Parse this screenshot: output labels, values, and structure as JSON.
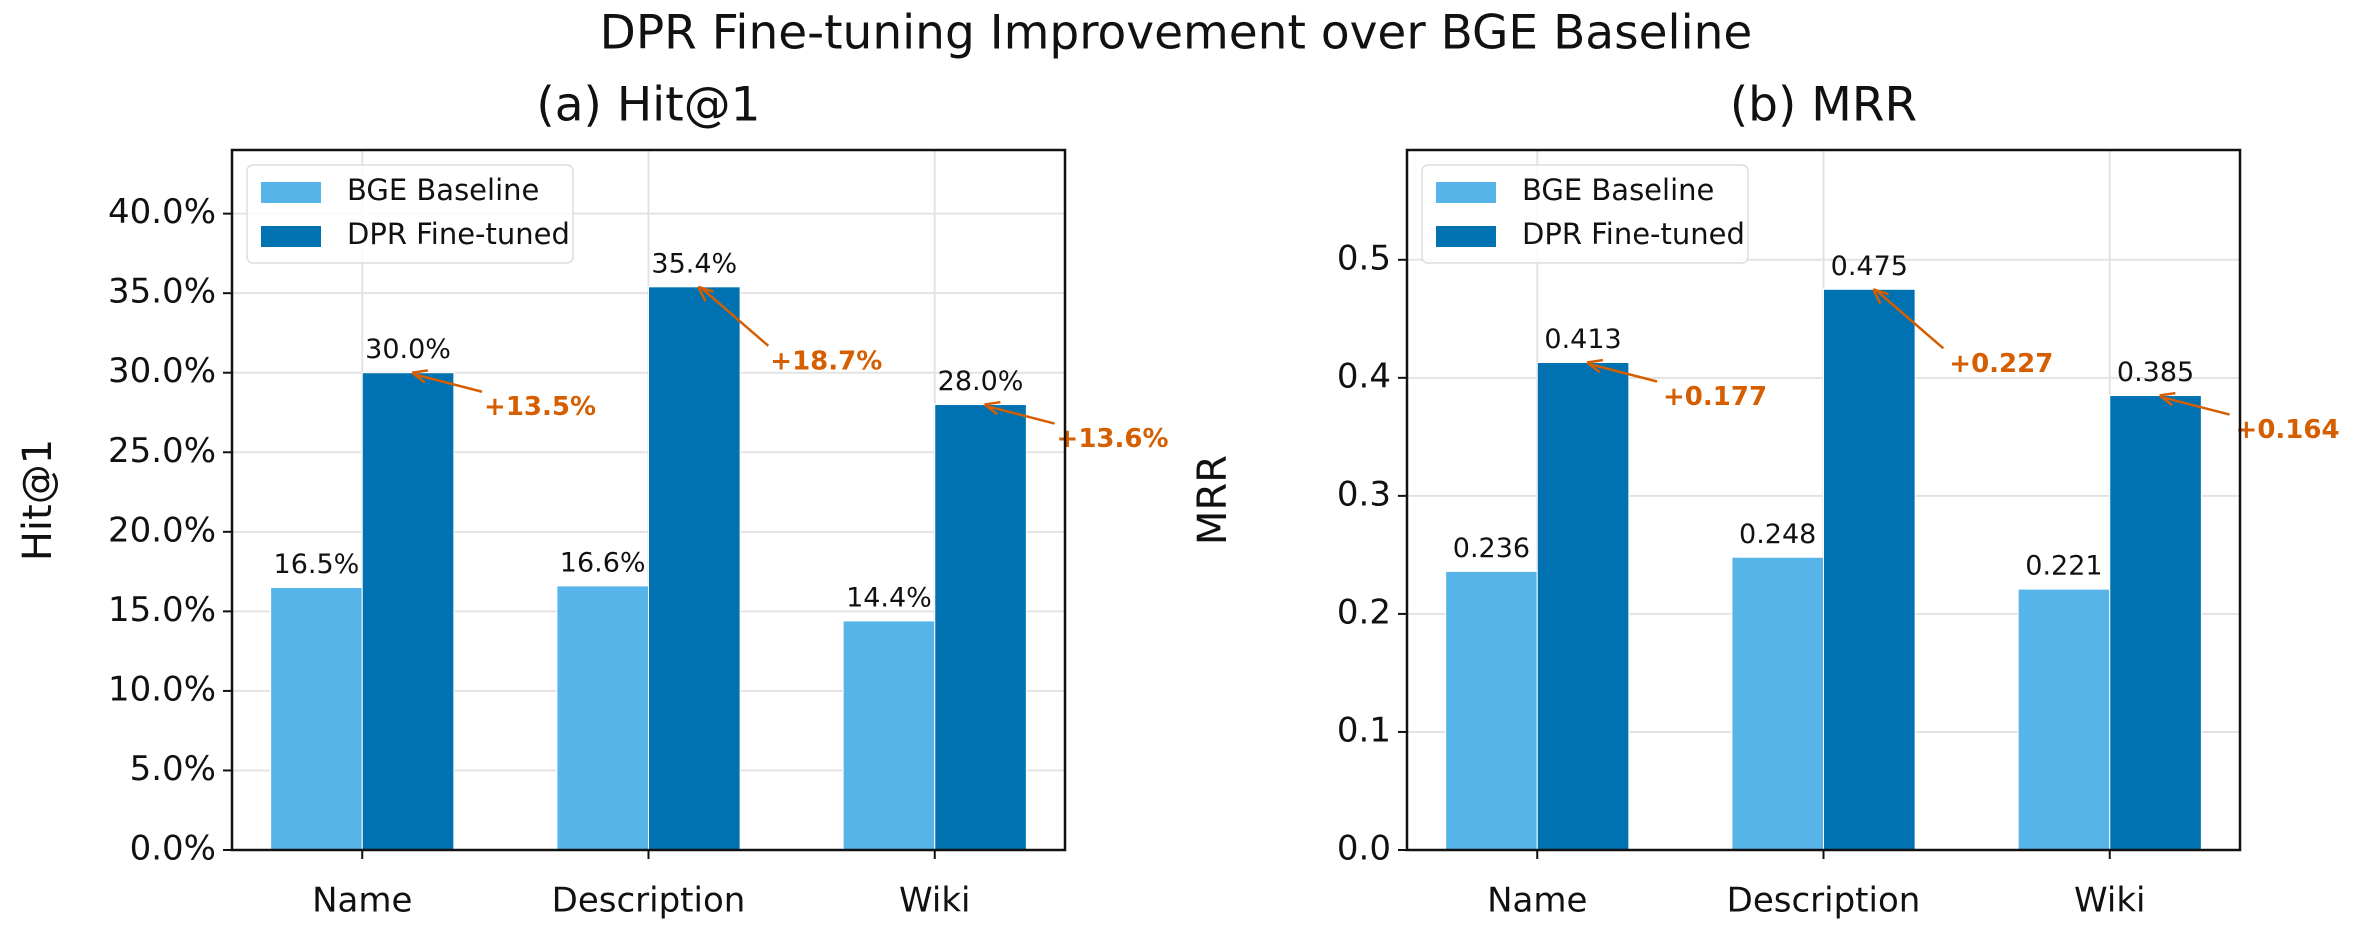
{
  "title": "DPR Fine-tuning Improvement over BGE Baseline",
  "chart_data": [
    {
      "type": "bar",
      "title": "(a) Hit@1",
      "y_label": "Hit@1",
      "categories": [
        "Name",
        "Description",
        "Wiki"
      ],
      "series": [
        {
          "name": "BGE Baseline",
          "color": "#56b4e9",
          "values": [
            16.5,
            16.6,
            14.4
          ],
          "value_labels": [
            "16.5%",
            "16.6%",
            "14.4%"
          ]
        },
        {
          "name": "DPR Fine-tuned",
          "color": "#0072b2",
          "values": [
            30.0,
            35.4,
            28.0
          ],
          "value_labels": [
            "30.0%",
            "35.4%",
            "28.0%"
          ]
        }
      ],
      "annotations": [
        "+13.5%",
        "+18.7%",
        "+13.6%"
      ],
      "annotation_color": "#d55e00",
      "ylim": [
        0,
        44
      ],
      "yticks": [
        {
          "value": 0,
          "label": "0.0%"
        },
        {
          "value": 5,
          "label": "5.0%"
        },
        {
          "value": 10,
          "label": "10.0%"
        },
        {
          "value": 15,
          "label": "15.0%"
        },
        {
          "value": 20,
          "label": "20.0%"
        },
        {
          "value": 25,
          "label": "25.0%"
        },
        {
          "value": 30,
          "label": "30.0%"
        },
        {
          "value": 35,
          "label": "35.0%"
        },
        {
          "value": 40,
          "label": "40.0%"
        }
      ],
      "grid": true,
      "legend": "upper-left"
    },
    {
      "type": "bar",
      "title": "(b) MRR",
      "y_label": "MRR",
      "categories": [
        "Name",
        "Description",
        "Wiki"
      ],
      "series": [
        {
          "name": "BGE Baseline",
          "color": "#56b4e9",
          "values": [
            0.236,
            0.248,
            0.221
          ]
        },
        {
          "name": "DPR Fine-tuned",
          "color": "#0072b2",
          "values": [
            0.413,
            0.475,
            0.385
          ]
        }
      ],
      "annotations": [
        "+0.177",
        "+0.227",
        "+0.164"
      ],
      "annotation_color": "#d55e00",
      "ylim": [
        0,
        0.593
      ],
      "yticks": [
        {
          "value": 0,
          "label": "0.0"
        },
        0.1,
        0.2,
        0.3,
        0.4,
        0.5
      ],
      "grid": true,
      "legend": "upper-left"
    }
  ]
}
